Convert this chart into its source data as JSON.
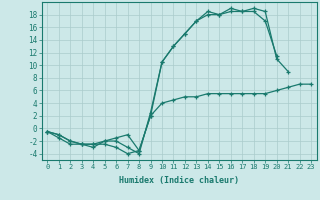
{
  "xlabel": "Humidex (Indice chaleur)",
  "bg_color": "#cce8e8",
  "line_color": "#1a7a6e",
  "grid_color": "#aacccc",
  "xlim": [
    -0.5,
    23.5
  ],
  "ylim": [
    -5,
    20
  ],
  "yticks": [
    -4,
    -2,
    0,
    2,
    4,
    6,
    8,
    10,
    12,
    14,
    16,
    18
  ],
  "xticks": [
    0,
    1,
    2,
    3,
    4,
    5,
    6,
    7,
    8,
    9,
    10,
    11,
    12,
    13,
    14,
    15,
    16,
    17,
    18,
    19,
    20,
    21,
    22,
    23
  ],
  "line1_x": [
    0,
    1,
    2,
    3,
    4,
    5,
    6,
    7,
    8,
    9,
    10,
    11,
    12,
    13,
    14,
    15,
    16,
    17,
    18,
    19,
    20
  ],
  "line1_y": [
    -0.5,
    -1.0,
    -2.0,
    -2.5,
    -2.5,
    -2.0,
    -2.0,
    -3.0,
    -4.0,
    2.5,
    10.5,
    13.0,
    15.0,
    17.0,
    18.5,
    18.0,
    19.0,
    18.5,
    18.5,
    17.0,
    11.5
  ],
  "line2_x": [
    0,
    1,
    2,
    3,
    4,
    5,
    6,
    7,
    8,
    9,
    10,
    11,
    12,
    13,
    14,
    15,
    16,
    17,
    18,
    19,
    20,
    21
  ],
  "line2_y": [
    -0.5,
    -1.5,
    -2.5,
    -2.5,
    -2.5,
    -2.5,
    -3.0,
    -4.0,
    -3.5,
    2.0,
    10.5,
    13.0,
    15.0,
    17.0,
    18.0,
    18.0,
    18.5,
    18.5,
    19.0,
    18.5,
    11.0,
    9.0
  ],
  "line3_x": [
    0,
    1,
    2,
    3,
    4,
    5,
    6,
    7,
    8,
    9,
    10,
    11,
    12,
    13,
    14,
    15,
    16,
    17,
    18,
    19,
    20,
    21,
    22,
    23
  ],
  "line3_y": [
    -0.5,
    -1.0,
    -2.0,
    -2.5,
    -3.0,
    -2.0,
    -1.5,
    -1.0,
    -3.5,
    2.0,
    4.0,
    4.5,
    5.0,
    5.0,
    5.5,
    5.5,
    5.5,
    5.5,
    5.5,
    5.5,
    6.0,
    6.5,
    7.0,
    7.0
  ],
  "marker": "+",
  "markersize": 3,
  "linewidth": 0.9
}
